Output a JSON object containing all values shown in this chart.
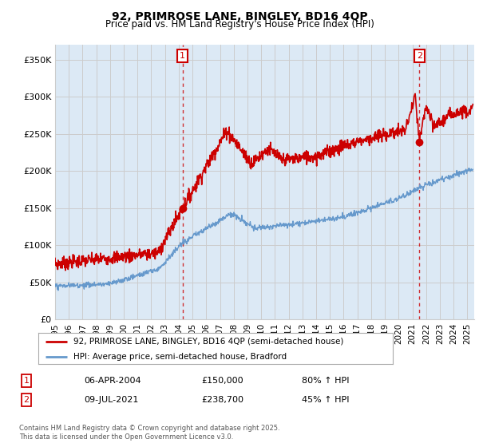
{
  "title": "92, PRIMROSE LANE, BINGLEY, BD16 4QP",
  "subtitle": "Price paid vs. HM Land Registry's House Price Index (HPI)",
  "legend_line1": "92, PRIMROSE LANE, BINGLEY, BD16 4QP (semi-detached house)",
  "legend_line2": "HPI: Average price, semi-detached house, Bradford",
  "footnote": "Contains HM Land Registry data © Crown copyright and database right 2025.\nThis data is licensed under the Open Government Licence v3.0.",
  "annotation1_date": "06-APR-2004",
  "annotation1_price": "£150,000",
  "annotation1_hpi": "80% ↑ HPI",
  "annotation2_date": "09-JUL-2021",
  "annotation2_price": "£238,700",
  "annotation2_hpi": "45% ↑ HPI",
  "red_color": "#cc0000",
  "blue_color": "#6699cc",
  "grid_color": "#cccccc",
  "plot_bg_color": "#dce9f5",
  "background_color": "#ffffff",
  "ylim_min": 0,
  "ylim_max": 370000,
  "yticks": [
    0,
    50000,
    100000,
    150000,
    200000,
    250000,
    300000,
    350000
  ],
  "ytick_labels": [
    "£0",
    "£50K",
    "£100K",
    "£150K",
    "£200K",
    "£250K",
    "£300K",
    "£350K"
  ],
  "marker1_x": 2004.27,
  "marker1_y": 150000,
  "marker2_x": 2021.52,
  "marker2_y": 238700,
  "vline1_x": 2004.27,
  "vline2_x": 2021.52,
  "xlim_min": 1995,
  "xlim_max": 2025.5
}
